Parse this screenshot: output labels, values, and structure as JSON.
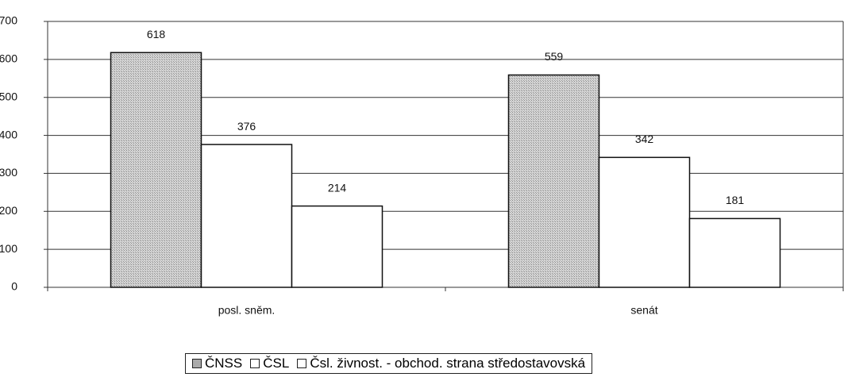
{
  "chart_data": {
    "type": "bar",
    "categories": [
      "posl. sněm.",
      "senát"
    ],
    "series": [
      {
        "name": "ČNSS",
        "color": "#c9c9c9",
        "values": [
          618,
          559
        ]
      },
      {
        "name": "ČSL",
        "color": "#ffffff",
        "values": [
          376,
          342
        ]
      },
      {
        "name": "Čsl. živnost. - obchod. strana středostavovská",
        "color": "#ffffff",
        "values": [
          214,
          181
        ]
      }
    ],
    "ylim": [
      0,
      700
    ],
    "yticks": [
      0,
      100,
      200,
      300,
      400,
      500,
      600,
      700
    ],
    "grid": true,
    "legend": "bottom"
  }
}
